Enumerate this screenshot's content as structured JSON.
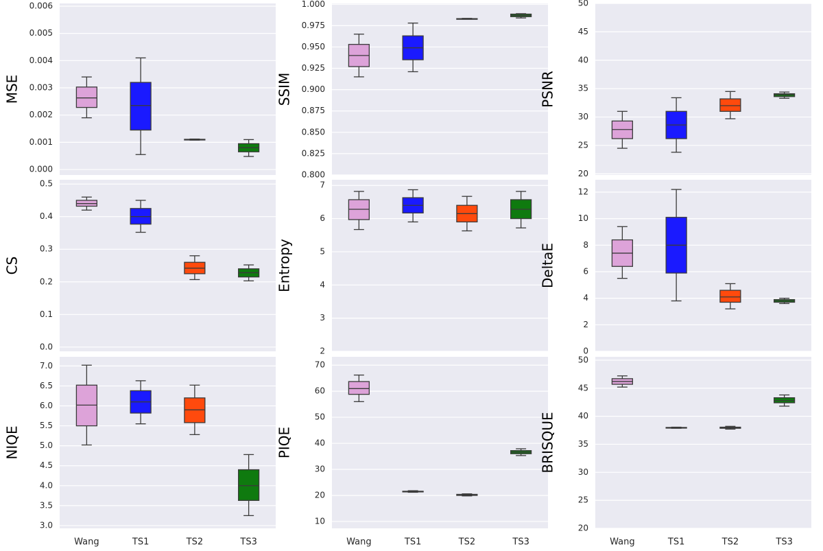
{
  "chart_data": [
    {
      "type": "box",
      "ylabel": "MSE",
      "ylim": [
        -0.0002,
        0.0061
      ],
      "yticks": [
        {
          "value": 0,
          "label": "0.000"
        },
        0.001,
        0.002,
        0.003,
        0.004,
        0.005,
        0.006
      ],
      "colors": [
        "#dda3d9",
        "#1a1aff",
        "#ff4a0d",
        "#0f7a0f"
      ],
      "boxes": [
        {
          "whislo": 0.0019,
          "q1": 0.00228,
          "med": 0.00263,
          "q3": 0.00303,
          "whishi": 0.0034
        },
        {
          "whislo": 0.00055,
          "q1": 0.00145,
          "med": 0.00235,
          "q3": 0.0032,
          "whishi": 0.0041
        },
        {
          "whislo": 0.00108,
          "q1": 0.00109,
          "med": 0.0011,
          "q3": 0.00111,
          "whishi": 0.00112
        },
        {
          "whislo": 0.00048,
          "q1": 0.00065,
          "med": 0.0008,
          "q3": 0.00095,
          "whishi": 0.0011
        }
      ]
    },
    {
      "type": "box",
      "ylabel": "SSIM",
      "ylim": [
        0.8,
        1.001
      ],
      "yticks": [
        {
          "value": 0.8,
          "label": "0.800"
        },
        0.825,
        {
          "value": 0.85,
          "label": "0.850"
        },
        0.875,
        {
          "value": 0.9,
          "label": "0.900"
        },
        0.925,
        {
          "value": 0.95,
          "label": "0.950"
        },
        0.975,
        {
          "value": 1,
          "label": "1.000"
        }
      ],
      "colors": [
        "#dda3d9",
        "#1a1aff",
        "#ff4a0d",
        "#0f7a0f"
      ],
      "boxes": [
        {
          "whislo": 0.915,
          "q1": 0.927,
          "med": 0.94,
          "q3": 0.953,
          "whishi": 0.965
        },
        {
          "whislo": 0.921,
          "q1": 0.935,
          "med": 0.949,
          "q3": 0.963,
          "whishi": 0.978
        },
        {
          "whislo": 0.9825,
          "q1": 0.9828,
          "med": 0.983,
          "q3": 0.9832,
          "whishi": 0.9835
        },
        {
          "whislo": 0.984,
          "q1": 0.9855,
          "med": 0.987,
          "q3": 0.9885,
          "whishi": 0.989
        }
      ]
    },
    {
      "type": "box",
      "ylabel": "PSNR",
      "ylim": [
        19.8,
        50
      ],
      "yticks": [
        20,
        25,
        30,
        35,
        40,
        45,
        50
      ],
      "colors": [
        "#dda3d9",
        "#1a1aff",
        "#ff4a0d",
        "#0f7a0f"
      ],
      "boxes": [
        {
          "whislo": 24.5,
          "q1": 26.2,
          "med": 27.8,
          "q3": 29.3,
          "whishi": 31
        },
        {
          "whislo": 23.8,
          "q1": 26.2,
          "med": 28.6,
          "q3": 31,
          "whishi": 33.4
        },
        {
          "whislo": 29.7,
          "q1": 31,
          "med": 32,
          "q3": 33.2,
          "whishi": 34.5
        },
        {
          "whislo": 33.3,
          "q1": 33.6,
          "med": 33.9,
          "q3": 34.1,
          "whishi": 34.4
        }
      ]
    },
    {
      "type": "box",
      "ylabel": "CS",
      "ylim": [
        -0.013,
        0.513
      ],
      "yticks": [
        {
          "value": 0,
          "label": "0.0"
        },
        0.1,
        0.2,
        0.3,
        0.4,
        0.5
      ],
      "colors": [
        "#dda3d9",
        "#1a1aff",
        "#ff4a0d",
        "#0f7a0f"
      ],
      "boxes": [
        {
          "whislo": 0.42,
          "q1": 0.432,
          "med": 0.44,
          "q3": 0.45,
          "whishi": 0.46
        },
        {
          "whislo": 0.352,
          "q1": 0.377,
          "med": 0.4,
          "q3": 0.425,
          "whishi": 0.45
        },
        {
          "whislo": 0.207,
          "q1": 0.225,
          "med": 0.242,
          "q3": 0.26,
          "whishi": 0.28
        },
        {
          "whislo": 0.203,
          "q1": 0.215,
          "med": 0.228,
          "q3": 0.24,
          "whishi": 0.252
        }
      ]
    },
    {
      "type": "box",
      "ylabel": "Entropy",
      "ylim": [
        2,
        7.17
      ],
      "yticks": [
        2,
        3,
        4,
        5,
        6,
        7
      ],
      "colors": [
        "#dda3d9",
        "#1a1aff",
        "#ff4a0d",
        "#0f7a0f"
      ],
      "boxes": [
        {
          "whislo": 5.67,
          "q1": 5.97,
          "med": 6.28,
          "q3": 6.57,
          "whishi": 6.82
        },
        {
          "whislo": 5.9,
          "q1": 6.17,
          "med": 6.4,
          "q3": 6.63,
          "whishi": 6.87
        },
        {
          "whislo": 5.63,
          "q1": 5.9,
          "med": 6.15,
          "q3": 6.4,
          "whishi": 6.67
        },
        {
          "whislo": 5.72,
          "q1": 6.0,
          "med": 6.28,
          "q3": 6.57,
          "whishi": 6.82
        }
      ]
    },
    {
      "type": "box",
      "ylabel": "DeltaE",
      "ylim": [
        0,
        12.93
      ],
      "yticks": [
        0,
        2,
        4,
        6,
        8,
        10,
        12
      ],
      "colors": [
        "#dda3d9",
        "#1a1aff",
        "#ff4a0d",
        "#0f7a0f"
      ],
      "boxes": [
        {
          "whislo": 5.5,
          "q1": 6.4,
          "med": 7.4,
          "q3": 8.4,
          "whishi": 9.4
        },
        {
          "whislo": 3.8,
          "q1": 5.9,
          "med": 8,
          "q3": 10.1,
          "whishi": 12.2
        },
        {
          "whislo": 3.2,
          "q1": 3.7,
          "med": 4.1,
          "q3": 4.6,
          "whishi": 5.1
        },
        {
          "whislo": 3.6,
          "q1": 3.7,
          "med": 3.8,
          "q3": 3.9,
          "whishi": 4.0
        }
      ]
    },
    {
      "type": "box",
      "ylabel": "NIQE",
      "ylim": [
        2.93,
        7.23
      ],
      "yticks": [
        {
          "value": 3,
          "label": "3.0"
        },
        3.5,
        {
          "value": 4,
          "label": "4.0"
        },
        4.5,
        {
          "value": 5,
          "label": "5.0"
        },
        5.5,
        {
          "value": 6,
          "label": "6.0"
        },
        6.5,
        {
          "value": 7,
          "label": "7.0"
        }
      ],
      "categories": [
        "Wang",
        "TS1",
        "TS2",
        "TS3"
      ],
      "colors": [
        "#dda3d9",
        "#1a1aff",
        "#ff4a0d",
        "#0f7a0f"
      ],
      "boxes": [
        {
          "whislo": 5.02,
          "q1": 5.5,
          "med": 6.02,
          "q3": 6.52,
          "whishi": 7.02
        },
        {
          "whislo": 5.55,
          "q1": 5.82,
          "med": 6.1,
          "q3": 6.38,
          "whishi": 6.63
        },
        {
          "whislo": 5.28,
          "q1": 5.58,
          "med": 5.9,
          "q3": 6.2,
          "whishi": 6.52
        },
        {
          "whislo": 3.25,
          "q1": 3.63,
          "med": 4.0,
          "q3": 4.4,
          "whishi": 4.78
        }
      ]
    },
    {
      "type": "box",
      "ylabel": "PIQE",
      "ylim": [
        7.35,
        73.2
      ],
      "yticks": [
        10,
        20,
        30,
        40,
        50,
        60,
        70
      ],
      "categories": [
        "Wang",
        "TS1",
        "TS2",
        "TS3"
      ],
      "colors": [
        "#dda3d9",
        "#1a1aff",
        "#ff4a0d",
        "#0f7a0f"
      ],
      "boxes": [
        {
          "whislo": 56,
          "q1": 58.8,
          "med": 61,
          "q3": 63.7,
          "whishi": 66.2
        },
        {
          "whislo": 21.2,
          "q1": 21.4,
          "med": 21.5,
          "q3": 21.6,
          "whishi": 21.8
        },
        {
          "whislo": 19.8,
          "q1": 20,
          "med": 20.2,
          "q3": 20.4,
          "whishi": 20.6
        },
        {
          "whislo": 35.3,
          "q1": 36,
          "med": 36.6,
          "q3": 37.2,
          "whishi": 37.9
        }
      ]
    },
    {
      "type": "box",
      "ylabel": "BRISQUE",
      "ylim": [
        20,
        50.6
      ],
      "yticks": [
        20,
        25,
        30,
        35,
        40,
        45,
        50
      ],
      "categories": [
        "Wang",
        "TS1",
        "TS2",
        "TS3"
      ],
      "colors": [
        "#dda3d9",
        "#1a1aff",
        "#ff4a0d",
        "#0f7a0f"
      ],
      "boxes": [
        {
          "whislo": 45.2,
          "q1": 45.7,
          "med": 46.2,
          "q3": 46.7,
          "whishi": 47.2
        },
        {
          "whislo": 37.85,
          "q1": 37.9,
          "med": 37.95,
          "q3": 38,
          "whishi": 38.05
        },
        {
          "whislo": 37.7,
          "q1": 37.85,
          "med": 37.95,
          "q3": 38.05,
          "whishi": 38.2
        },
        {
          "whislo": 41.8,
          "q1": 42.4,
          "med": 42.8,
          "q3": 43.3,
          "whishi": 43.8
        }
      ]
    }
  ]
}
